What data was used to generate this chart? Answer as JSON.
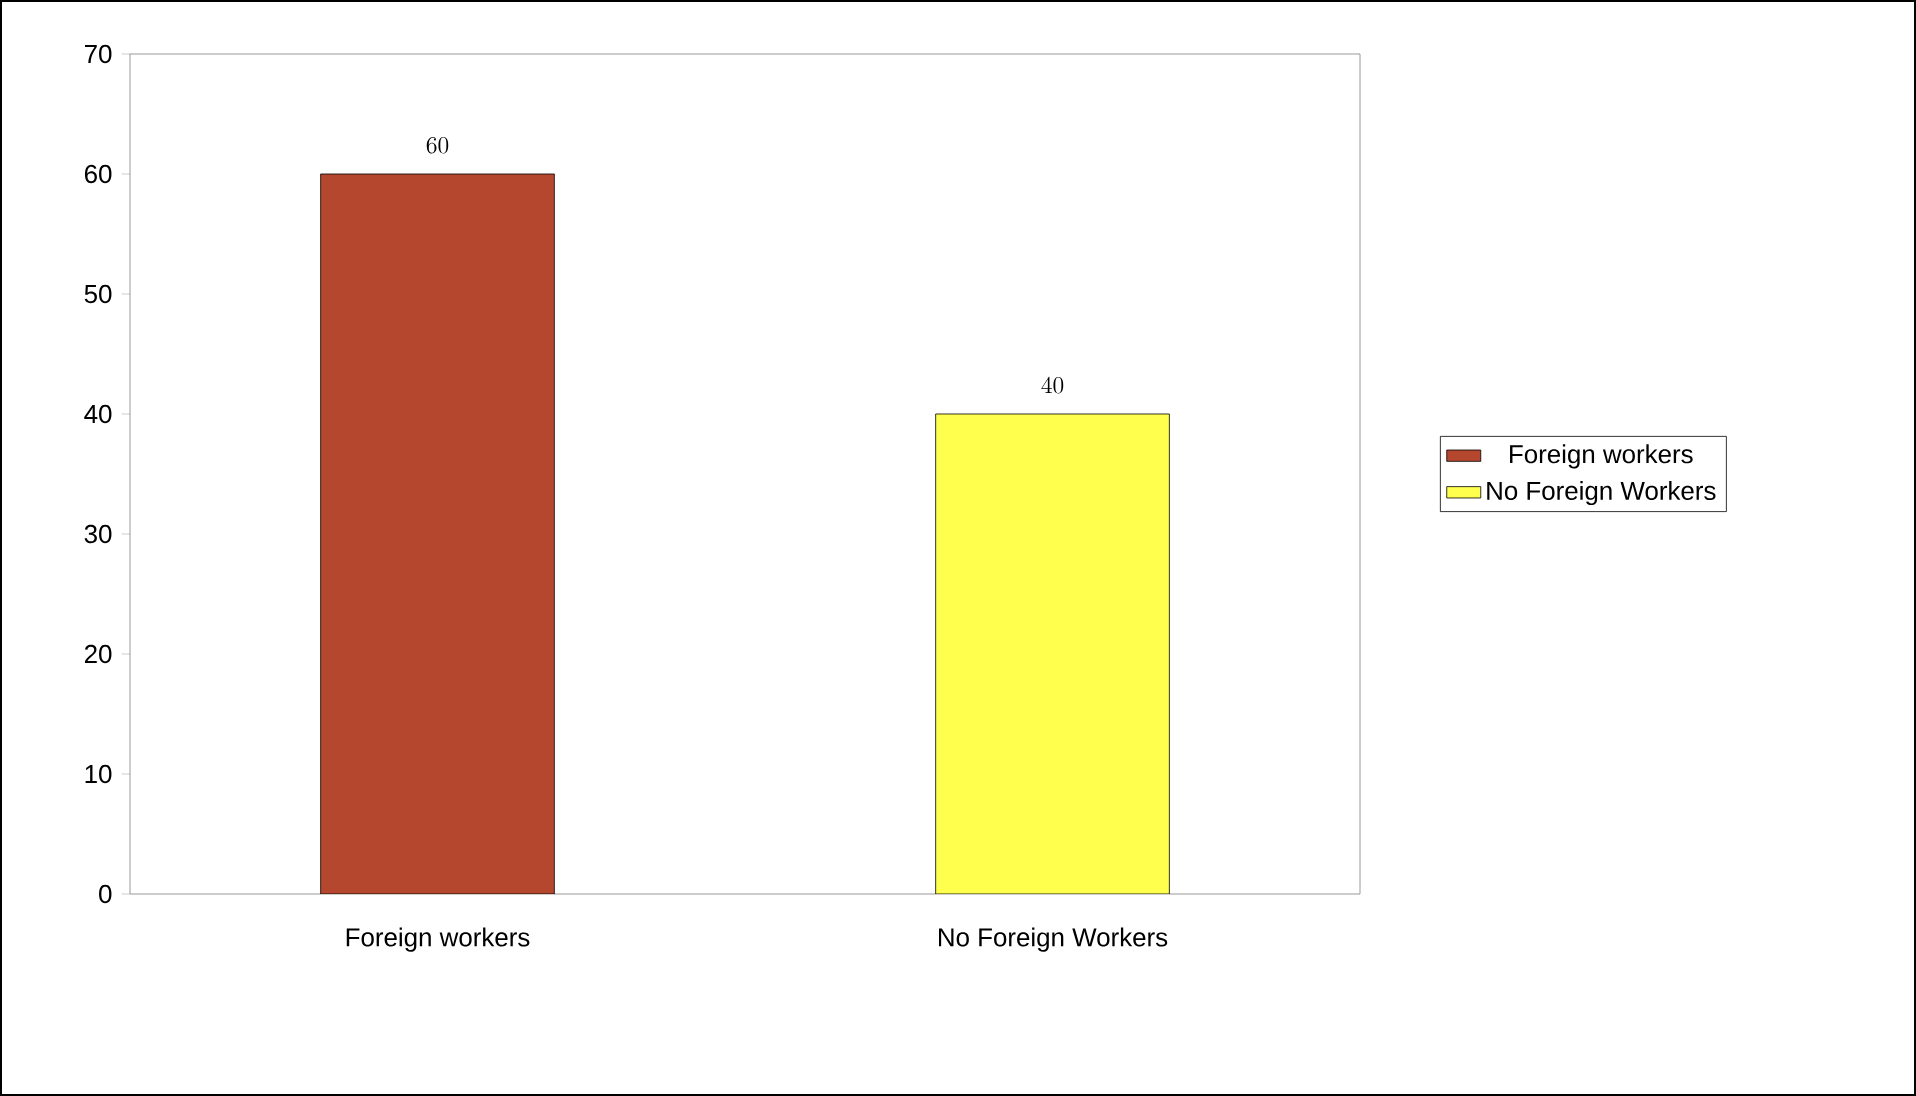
{
  "chart_data": {
    "type": "bar",
    "categories": [
      "Foreign workers",
      "No Foreign Workers"
    ],
    "series": [
      {
        "name": "Foreign workers",
        "color": "#b5472f",
        "values": [
          60,
          null
        ]
      },
      {
        "name": "No Foreign Workers",
        "color": "#ffff4d",
        "values": [
          null,
          40
        ]
      }
    ],
    "ylim": [
      0,
      70
    ],
    "yticks": [
      0,
      10,
      20,
      30,
      40,
      50,
      60,
      70
    ],
    "data_labels": true,
    "legend": "right"
  }
}
